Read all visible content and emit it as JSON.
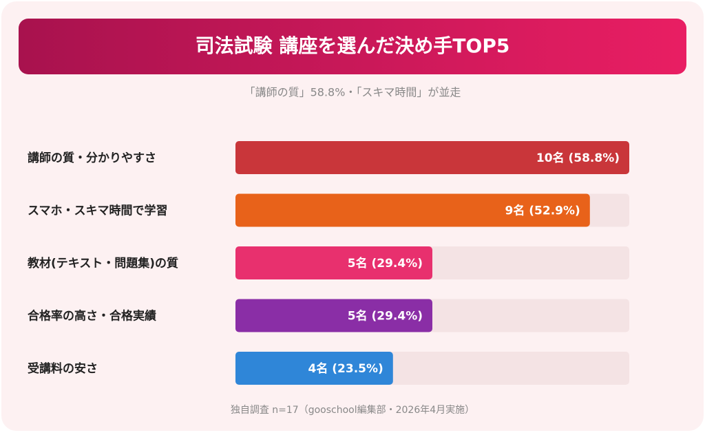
{
  "chart_data": {
    "type": "bar",
    "title": "司法試験 講座を選んだ決め手TOP5",
    "subtitle": "「講師の質」58.8%・「スキマ時間」が並走",
    "note": "独自調査 n=17（gooschool編集部・2026年4月実施）",
    "categories": [
      "講師の質・分かりやすさ",
      "スマホ・スキマ時間で学習",
      "教材(テキスト・問題集)の質",
      "合格率の高さ・合格実績",
      "受講料の安さ"
    ],
    "values": [
      10,
      9,
      5,
      5,
      4
    ],
    "value_labels": [
      "10名 (58.8%)",
      "9名 (52.9%)",
      "5名 (29.4%)",
      "5名 (29.4%)",
      "4名 (23.5%)"
    ],
    "colors": [
      "#c9363a",
      "#e8621a",
      "#e8306e",
      "#8a2ea6",
      "#2f86d8"
    ],
    "xlim": [
      0,
      10
    ]
  }
}
